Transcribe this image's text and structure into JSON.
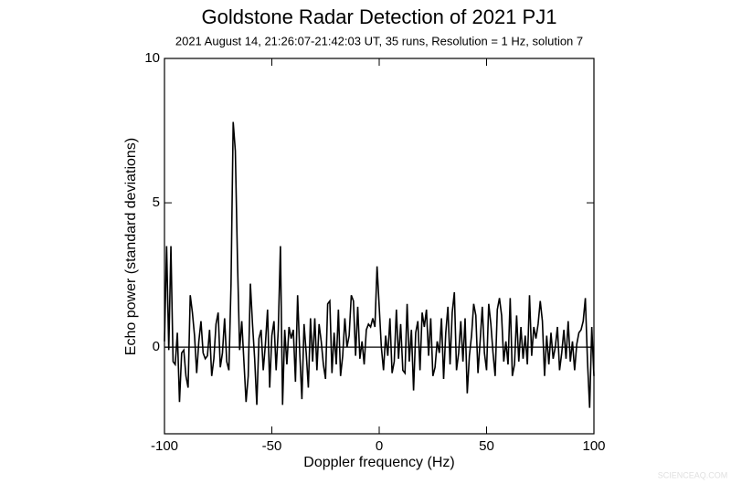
{
  "chart_data": {
    "type": "line",
    "title": "Goldstone Radar Detection of 2021 PJ1",
    "subtitle": "2021 August 14, 21:26:07-21:42:03 UT, 35 runs, Resolution = 1 Hz, solution 7",
    "x_label": "Doppler frequency (Hz)",
    "y_label": "Echo power (standard deviations)",
    "watermark": "SCIENCEAQ.COM",
    "xlim": [
      -100,
      100
    ],
    "ylim": [
      -3,
      10
    ],
    "xticks": [
      -100,
      -50,
      0,
      50,
      100
    ],
    "yticks": [
      0,
      5,
      10
    ],
    "zero_line": true,
    "x": [
      -100,
      -99,
      -98,
      -97,
      -96,
      -95,
      -94,
      -93,
      -92,
      -91,
      -90,
      -89,
      -88,
      -87,
      -86,
      -85,
      -84,
      -83,
      -82,
      -81,
      -80,
      -79,
      -78,
      -77,
      -76,
      -75,
      -74,
      -73,
      -72,
      -71,
      -70,
      -69,
      -68,
      -67,
      -66,
      -65,
      -64,
      -63,
      -62,
      -61,
      -60,
      -59,
      -58,
      -57,
      -56,
      -55,
      -54,
      -53,
      -52,
      -51,
      -50,
      -49,
      -48,
      -47,
      -46,
      -45,
      -44,
      -43,
      -42,
      -41,
      -40,
      -39,
      -38,
      -37,
      -36,
      -35,
      -34,
      -33,
      -32,
      -31,
      -30,
      -29,
      -28,
      -27,
      -26,
      -25,
      -24,
      -23,
      -22,
      -21,
      -20,
      -19,
      -18,
      -17,
      -16,
      -15,
      -14,
      -13,
      -12,
      -11,
      -10,
      -9,
      -8,
      -7,
      -6,
      -5,
      -4,
      -3,
      -2,
      -1,
      0,
      1,
      2,
      3,
      4,
      5,
      6,
      7,
      8,
      9,
      10,
      11,
      12,
      13,
      14,
      15,
      16,
      17,
      18,
      19,
      20,
      21,
      22,
      23,
      24,
      25,
      26,
      27,
      28,
      29,
      30,
      31,
      32,
      33,
      34,
      35,
      36,
      37,
      38,
      39,
      40,
      41,
      42,
      43,
      44,
      45,
      46,
      47,
      48,
      49,
      50,
      51,
      52,
      53,
      54,
      55,
      56,
      57,
      58,
      59,
      60,
      61,
      62,
      63,
      64,
      65,
      66,
      67,
      68,
      69,
      70,
      71,
      72,
      73,
      74,
      75,
      76,
      77,
      78,
      79,
      80,
      81,
      82,
      83,
      84,
      85,
      86,
      87,
      88,
      89,
      90,
      91,
      92,
      93,
      94,
      95,
      96,
      97,
      98,
      99,
      100
    ],
    "series": [
      {
        "color": "#000000",
        "values": [
          0.2,
          3.5,
          -0.1,
          3.5,
          -0.5,
          -0.6,
          0.5,
          -1.9,
          -0.2,
          -0.1,
          -1.0,
          -1.4,
          1.8,
          1.2,
          0.4,
          -0.9,
          0.2,
          0.9,
          -0.2,
          -0.4,
          -0.3,
          0.6,
          -1.0,
          -0.4,
          0.8,
          1.2,
          -0.7,
          -0.2,
          1.0,
          -0.5,
          -0.8,
          2.2,
          7.8,
          6.8,
          3.0,
          -0.1,
          0.9,
          -0.5,
          -1.9,
          -1.0,
          2.2,
          0.8,
          -0.4,
          -2.0,
          0.3,
          0.6,
          -0.8,
          0.1,
          1.3,
          -1.4,
          0.4,
          0.9,
          -0.8,
          0.6,
          3.5,
          -2.0,
          0.6,
          -0.6,
          0.7,
          0.3,
          0.6,
          -1.2,
          1.8,
          -0.2,
          -1.8,
          0.8,
          -0.2,
          -1.4,
          1.0,
          -0.5,
          1.0,
          -0.8,
          0.8,
          0.2,
          -0.6,
          -1.1,
          1.5,
          1.6,
          -0.9,
          0.5,
          -0.6,
          1.3,
          -1.0,
          -0.3,
          1.0,
          0.0,
          0.4,
          1.8,
          1.6,
          -0.3,
          1.4,
          -0.4,
          0.2,
          -0.6,
          0.6,
          0.8,
          0.7,
          1.0,
          0.7,
          2.8,
          1.4,
          0.0,
          -0.8,
          0.4,
          -0.3,
          1.0,
          -0.9,
          -0.5,
          1.3,
          -0.4,
          0.8,
          -0.8,
          -0.9,
          1.5,
          -0.5,
          0.6,
          -1.5,
          0.5,
          0.9,
          -0.8,
          1.2,
          0.7,
          1.3,
          -0.3,
          1.0,
          -1.0,
          -0.7,
          0.2,
          -0.2,
          1.0,
          -1.1,
          0.5,
          1.4,
          -0.6,
          1.2,
          1.9,
          -0.8,
          -0.2,
          0.9,
          -0.5,
          1.0,
          -1.6,
          -0.3,
          0.4,
          1.5,
          1.1,
          -0.9,
          0.2,
          1.4,
          -0.2,
          -0.8,
          1.5,
          0.8,
          -0.2,
          -1.0,
          1.3,
          1.7,
          1.1,
          -0.5,
          0.2,
          -0.6,
          1.7,
          -1.0,
          -0.6,
          1.1,
          -0.5,
          0.7,
          -0.4,
          0.4,
          -0.6,
          1.8,
          -0.3,
          0.7,
          0.3,
          0.8,
          1.6,
          0.9,
          -1.0,
          0.4,
          -0.6,
          0.5,
          -0.4,
          0.0,
          0.7,
          -0.8,
          -0.2,
          0.6,
          -0.4,
          0.9,
          -0.5,
          0.2,
          -0.8,
          0.1,
          0.5,
          0.6,
          0.9,
          1.7,
          -0.5,
          -2.1,
          0.7,
          -1.0
        ]
      }
    ]
  }
}
